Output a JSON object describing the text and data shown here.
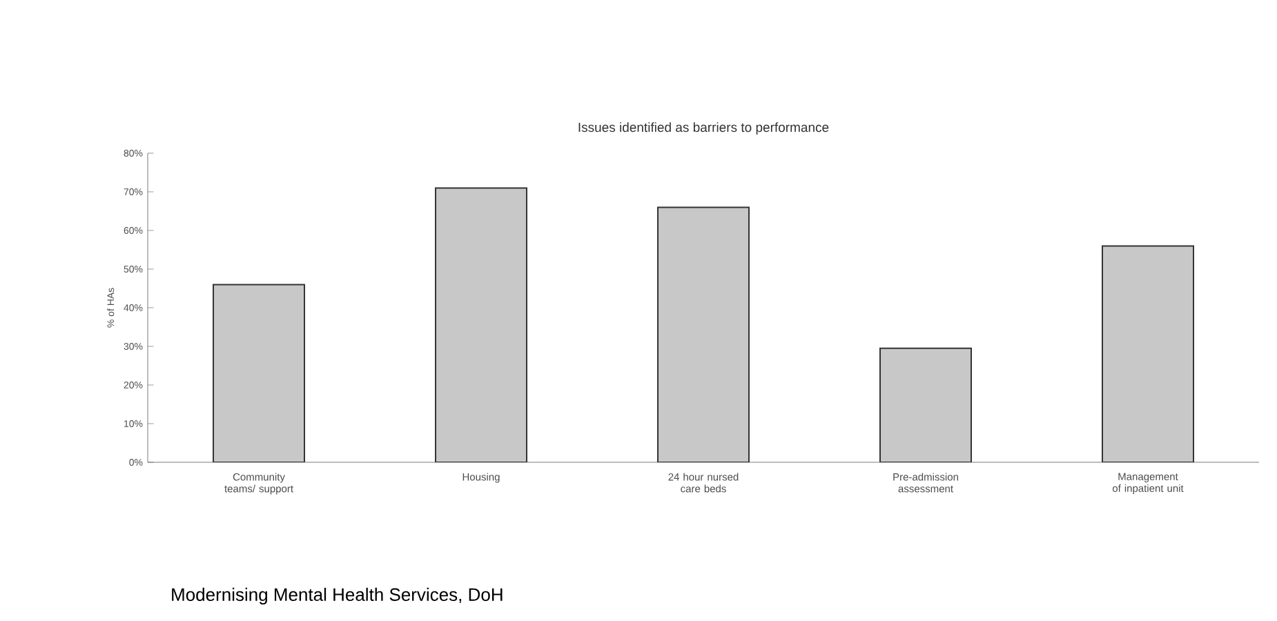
{
  "chart_data": {
    "type": "bar",
    "title": "Issues identified as barriers to performance",
    "ylabel": "% of HAs",
    "categories": [
      "Community teams/ support",
      "Housing",
      "24 hour nursed care beds",
      "Pre-admission assessment",
      "Management of inpatient unit"
    ],
    "values": [
      46,
      71,
      66,
      29.5,
      56
    ],
    "color": "#c8c8c8",
    "ylim": [
      0,
      80
    ],
    "yticks": [
      {
        "value": 0,
        "label": "0%"
      },
      {
        "value": 10,
        "label": "10%"
      },
      {
        "value": 20,
        "label": "20%"
      },
      {
        "value": 30,
        "label": "30%"
      },
      {
        "value": 40,
        "label": "40%"
      },
      {
        "value": 50,
        "label": "50%"
      },
      {
        "value": 60,
        "label": "60%"
      },
      {
        "value": 70,
        "label": "70%"
      },
      {
        "value": 80,
        "label": "80%"
      }
    ],
    "annotations": [
      "Modernising Mental Health Services, DoH"
    ]
  }
}
